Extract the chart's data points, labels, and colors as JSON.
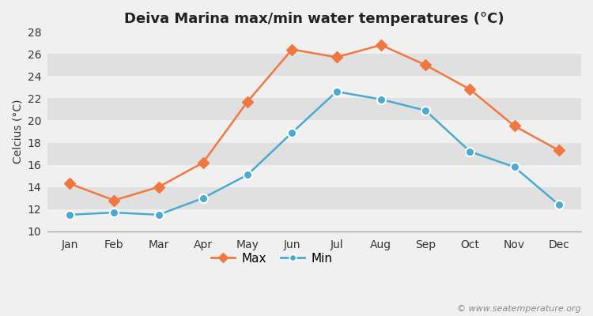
{
  "title": "Deiva Marina max/min water temperatures (°C)",
  "ylabel": "Celcius (°C)",
  "months": [
    "Jan",
    "Feb",
    "Mar",
    "Apr",
    "May",
    "Jun",
    "Jul",
    "Aug",
    "Sep",
    "Oct",
    "Nov",
    "Dec"
  ],
  "max_temps": [
    14.3,
    12.8,
    14.0,
    16.2,
    21.7,
    26.4,
    25.7,
    26.8,
    25.0,
    22.8,
    19.5,
    17.3
  ],
  "min_temps": [
    11.5,
    11.7,
    11.5,
    13.0,
    15.1,
    18.9,
    22.6,
    21.9,
    20.9,
    17.2,
    15.8,
    12.4
  ],
  "max_color": "#f07840",
  "min_color": "#4aaad0",
  "outer_bg_color": "#f0f0f0",
  "plot_bg_color": "#ffffff",
  "band_colors": [
    "#f0f0f0",
    "#e0e0e0"
  ],
  "yticks": [
    10,
    12,
    14,
    16,
    18,
    20,
    22,
    24,
    26,
    28
  ],
  "ylim": [
    10,
    28
  ],
  "marker_size_max": 7,
  "marker_size_min": 8,
  "line_width": 1.8,
  "title_fontsize": 13,
  "axis_label_fontsize": 10,
  "tick_fontsize": 10,
  "legend_fontsize": 11,
  "watermark": "© www.seatemperature.org"
}
